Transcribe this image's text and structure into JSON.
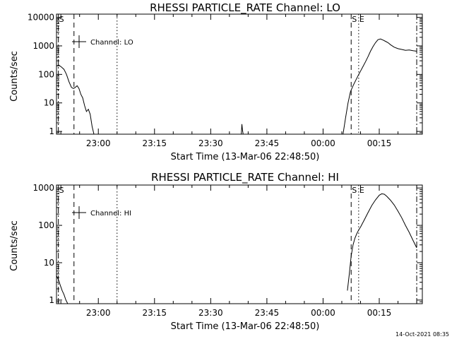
{
  "footer": {
    "timestamp": "14-Oct-2021 08:35"
  },
  "chart_data": [
    {
      "type": "line",
      "title": "RHESSI PARTICLE_RATE Channel: LO",
      "xlabel": "Start Time (13-Mar-06 22:48:50)",
      "ylabel": "Counts/sec",
      "yscale": "log",
      "ylim": [
        0.8,
        13000
      ],
      "xlim": [
        "22:48:50",
        "00:26:30"
      ],
      "xticks": [
        "23:00",
        "23:15",
        "23:30",
        "23:45",
        "00:00",
        "00:15"
      ],
      "yticks": [
        "1",
        "10",
        "100",
        "1000",
        "10000"
      ],
      "legend": {
        "entries": [
          "Channel: LO"
        ],
        "position": "top-left"
      },
      "markers": [
        {
          "label": "S",
          "time": "22:49:20",
          "style": "dash-dot"
        },
        {
          "label": "",
          "time": "22:53:30",
          "style": "dashed"
        },
        {
          "label": "",
          "time": "23:05:00",
          "style": "dotted"
        },
        {
          "label": "S",
          "time": "00:07:30",
          "style": "dashed"
        },
        {
          "label": "E",
          "time": "00:09:30",
          "style": "dotted"
        },
        {
          "label": "",
          "time": "00:25:00",
          "style": "dash-dot"
        }
      ],
      "series": [
        {
          "segments": [
            {
              "x": [
                "22:48:50",
                "22:49:30",
                "22:50:10",
                "22:50:50",
                "22:51:30",
                "22:52:10",
                "22:52:50",
                "22:53:20",
                "22:53:50",
                "22:54:20",
                "22:54:50",
                "22:55:20",
                "22:55:50",
                "22:56:20",
                "22:56:50",
                "22:57:20",
                "22:57:50",
                "22:58:20",
                "22:58:50"
              ],
              "y": [
                200,
                210,
                180,
                150,
                100,
                55,
                35,
                32,
                35,
                40,
                32,
                20,
                15,
                8,
                5,
                6,
                4,
                1.5,
                0.8
              ]
            },
            {
              "x": [
                "23:38:10",
                "23:38:20",
                "23:38:30",
                "23:38:40"
              ],
              "y": [
                0.8,
                1.8,
                1.1,
                0.8
              ]
            },
            {
              "x": [
                "00:05:20",
                "00:06:00",
                "00:06:40",
                "00:07:20",
                "00:08:00",
                "00:08:40",
                "00:09:20",
                "00:10:00",
                "00:10:40",
                "00:11:20",
                "00:12:00",
                "00:12:40",
                "00:13:20",
                "00:14:00",
                "00:14:40",
                "00:15:20",
                "00:16:00",
                "00:16:40",
                "00:17:20",
                "00:18:00",
                "00:19:00",
                "00:20:00",
                "00:21:00",
                "00:22:00",
                "00:23:00",
                "00:24:00",
                "00:25:00"
              ],
              "y": [
                0.8,
                3,
                10,
                25,
                40,
                60,
                90,
                130,
                190,
                280,
                420,
                650,
                950,
                1300,
                1650,
                1750,
                1600,
                1450,
                1300,
                1100,
                900,
                800,
                750,
                700,
                720,
                680,
                650
              ]
            }
          ]
        }
      ]
    },
    {
      "type": "line",
      "title": "RHESSI PARTICLE_RATE Channel: HI",
      "xlabel": "Start Time (13-Mar-06 22:48:50)",
      "ylabel": "Counts/sec",
      "yscale": "log",
      "ylim": [
        0.8,
        1200
      ],
      "xlim": [
        "22:48:50",
        "00:26:30"
      ],
      "xticks": [
        "23:00",
        "23:15",
        "23:30",
        "23:45",
        "00:00",
        "00:15"
      ],
      "yticks": [
        "1",
        "10",
        "100",
        "1000"
      ],
      "legend": {
        "entries": [
          "Channel: HI"
        ],
        "position": "top-left"
      },
      "markers": [
        {
          "label": "S",
          "time": "22:49:20",
          "style": "dash-dot"
        },
        {
          "label": "",
          "time": "22:53:30",
          "style": "dashed"
        },
        {
          "label": "",
          "time": "23:05:00",
          "style": "dotted"
        },
        {
          "label": "S",
          "time": "00:07:30",
          "style": "dashed"
        },
        {
          "label": "E",
          "time": "00:09:30",
          "style": "dotted"
        },
        {
          "label": "",
          "time": "00:25:00",
          "style": "dash-dot"
        }
      ],
      "series": [
        {
          "segments": [
            {
              "x": [
                "22:48:50",
                "22:49:20",
                "22:49:50",
                "22:50:20",
                "22:50:50",
                "22:51:20",
                "22:51:50"
              ],
              "y": [
                4.5,
                3.5,
                2.5,
                1.8,
                1.4,
                1.0,
                0.8
              ]
            },
            {
              "x": [
                "00:06:30",
                "00:07:00",
                "00:07:30",
                "00:08:00",
                "00:08:30",
                "00:09:00",
                "00:09:30",
                "00:10:00",
                "00:11:00",
                "00:12:00",
                "00:13:00",
                "00:14:00",
                "00:15:00",
                "00:15:40",
                "00:16:20",
                "00:17:00",
                "00:18:00",
                "00:19:00",
                "00:20:00",
                "00:21:00",
                "00:22:00",
                "00:23:00",
                "00:24:00",
                "00:25:00"
              ],
              "y": [
                1.8,
                5,
                15,
                30,
                45,
                60,
                75,
                90,
                140,
                220,
                340,
                480,
                640,
                700,
                680,
                600,
                470,
                350,
                240,
                160,
                100,
                65,
                40,
                25
              ]
            }
          ]
        }
      ]
    }
  ]
}
